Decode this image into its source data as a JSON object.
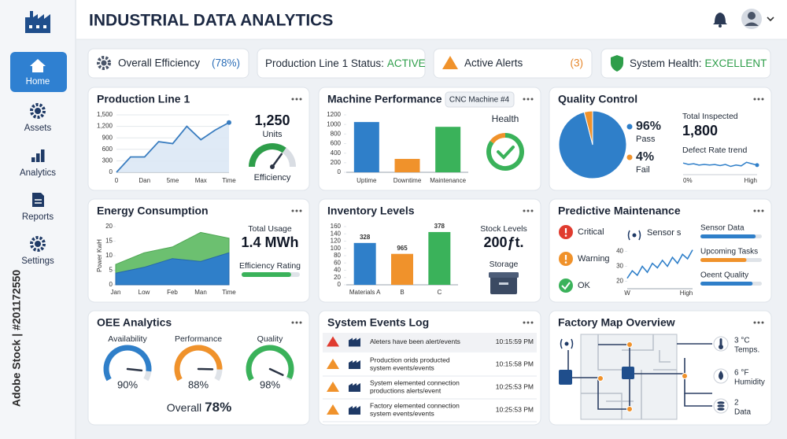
{
  "watermark": "Adobe Stock | #201172550",
  "header": {
    "title": "INDUSTRIAL DATA ANALYTICS"
  },
  "nav": [
    {
      "label": "Home",
      "active": true
    },
    {
      "label": "Assets",
      "active": false
    },
    {
      "label": "Analytics",
      "active": false
    },
    {
      "label": "Reports",
      "active": false
    },
    {
      "label": "Settings",
      "active": false
    }
  ],
  "status": [
    {
      "label": "Overall Efficiency",
      "value": "(78%)",
      "color": "#2d6fb8"
    },
    {
      "label": "Production Line 1 Status:",
      "value": "ACTIVE",
      "color": "#2e9e4a"
    },
    {
      "label": "Active Alerts",
      "value": "(3)",
      "color": "#e6862a"
    },
    {
      "label": "System Health:",
      "value": "EXCELLENT",
      "color": "#2e9e4a"
    }
  ],
  "production_line": {
    "title": "Production Line 1",
    "chart": {
      "type": "line",
      "categories": [
        "0",
        null,
        "Dan",
        null,
        "5me",
        null,
        "Max",
        null,
        "Time"
      ],
      "values": [
        0,
        400,
        400,
        800,
        750,
        1200,
        850,
        1100,
        1300
      ],
      "ylim": [
        0,
        1500
      ],
      "yticks": [
        0,
        300,
        600,
        900,
        {
          "value": 1200,
          "label": "1,200"
        },
        {
          "value": 1500,
          "label": "1,500"
        }
      ],
      "color": "#3a7dc0",
      "grid": true
    },
    "kpi": {
      "value": "1,250",
      "label": "Units"
    },
    "gauge": {
      "label": "Efficiency",
      "value": 70,
      "color": "#2e9e4a"
    }
  },
  "machine_performance": {
    "title": "Machine Performance",
    "badge": "CNC Machine #4",
    "chart": {
      "type": "bar",
      "categories": [
        "Uptime",
        "Downtime",
        "Maintenance"
      ],
      "values": [
        1050,
        280,
        950
      ],
      "colors": [
        "#2f7fc9",
        "#f0922b",
        "#3ab25a"
      ],
      "ylim": [
        0,
        1200
      ],
      "yticks": [
        0,
        200,
        400,
        600,
        800,
        1000,
        1200
      ]
    },
    "health": {
      "label": "Health",
      "value": 85
    }
  },
  "quality_control": {
    "title": "Quality Control",
    "pie": {
      "type": "pie",
      "categories": [
        "Pass",
        "Fail"
      ],
      "values": [
        96,
        4
      ],
      "value_labels": [
        "96%",
        "4%"
      ],
      "colors": [
        "#2f7fc9",
        "#f0922b"
      ]
    },
    "total": {
      "label": "Total Inspected",
      "value": "1,800"
    },
    "trend": {
      "type": "line",
      "title": "Defect Rate trend",
      "values": [
        6,
        5,
        5.5,
        4.5,
        5,
        4.6,
        4.9,
        4.2,
        5,
        3.6,
        4.6,
        4,
        6.5,
        5.5,
        4.5
      ],
      "ylim": [
        0,
        10
      ],
      "x_labels": [
        "0%",
        "High"
      ],
      "color": "#2f7fc9"
    }
  },
  "energy_consumption": {
    "title": "Energy Consumption",
    "chart": {
      "type": "stacked_area",
      "y_label": "Power KwH",
      "categories": [
        "Jan",
        "Low",
        "Feb",
        "Man",
        "Time"
      ],
      "series": [
        {
          "color": "#2f7fc9",
          "values": [
            4,
            6,
            9,
            8,
            11
          ]
        },
        {
          "color": "#6cc070",
          "values": [
            3,
            5,
            4,
            10,
            5
          ]
        }
      ],
      "ylim": [
        0,
        20
      ],
      "yticks": [
        0,
        5,
        10,
        15,
        20
      ]
    },
    "total": {
      "label": "Total Usage",
      "value": "1.4 MWh"
    },
    "rating": {
      "label": "Efficiency Rating",
      "value": 85,
      "color": "#3ab25a"
    }
  },
  "inventory_levels": {
    "title": "Inventory Levels",
    "chart": {
      "type": "bar",
      "categories": [
        "Materials A",
        "B",
        "C"
      ],
      "values": [
        115,
        85,
        145
      ],
      "annotations": [
        "328",
        "965",
        "378"
      ],
      "colors": [
        "#2f7fc9",
        "#f0922b",
        "#3ab25a"
      ],
      "ylim": [
        0,
        160
      ],
      "yticks": [
        0,
        20,
        40,
        60,
        80,
        100,
        120,
        140,
        160
      ]
    },
    "stock": {
      "label": "Stock Levels",
      "value": "200ƒt."
    },
    "storage": {
      "label": "Storage"
    }
  },
  "predictive_maintenance": {
    "title": "Predictive Maintenance",
    "statuses": [
      {
        "label": "Critical",
        "color": "#e03b2f"
      },
      {
        "label": "Warning",
        "color": "#f0922b"
      },
      {
        "label": "OK",
        "color": "#3ab25a"
      }
    ],
    "sensor": {
      "label": "Sensor s",
      "chart": {
        "type": "line",
        "values": [
          22,
          27,
          24,
          30,
          26,
          32,
          29,
          34,
          30,
          36,
          32,
          38,
          35,
          41
        ],
        "ylim": [
          15,
          45
        ],
        "yticks": [
          20,
          30,
          40
        ],
        "x_labels": [
          "W",
          "High"
        ],
        "color": "#2f7fc9"
      }
    },
    "bars": [
      {
        "label": "Sensor Data",
        "value": 90,
        "color": "#2f7fc9"
      },
      {
        "label": "Upcoming Tasks",
        "value": 75,
        "color": "#f0922b"
      },
      {
        "label": "Oeent Quality",
        "value": 85,
        "color": "#2f7fc9"
      }
    ]
  },
  "oee_analytics": {
    "title": "OEE Analytics",
    "gauges": [
      {
        "label": "Availability",
        "value": 90,
        "value_label": "90%",
        "color": "#2f7fc9"
      },
      {
        "label": "Performance",
        "value": 88,
        "value_label": "88%",
        "color": "#f0922b"
      },
      {
        "label": "Quality",
        "value": 98,
        "value_label": "98%",
        "color": "#3ab25a"
      }
    ],
    "overall": {
      "label": "Overall",
      "value": "78%"
    }
  },
  "system_events_log": {
    "title": "System Events Log",
    "events": [
      {
        "message": [
          "Aleters have been alert/events"
        ],
        "time": "10:15:59 PM",
        "level": "critical"
      },
      {
        "message": [
          "Production orids producted",
          "system events/events"
        ],
        "time": "10:15:58 PM",
        "level": "warning"
      },
      {
        "message": [
          "System elemented connection",
          "productions alerts/event"
        ],
        "time": "10:25:53 PM",
        "level": "warning"
      },
      {
        "message": [
          "Factory elemented connection",
          "system events/events"
        ],
        "time": "10:25:53 PM",
        "level": "warning"
      }
    ]
  },
  "factory_map": {
    "title": "Factory Map Overview",
    "sensors": [
      {
        "value": "3 °C",
        "label": "Temps."
      },
      {
        "value": "6 °F",
        "label": "Humidity"
      },
      {
        "value": "2",
        "label": "Data"
      }
    ]
  }
}
